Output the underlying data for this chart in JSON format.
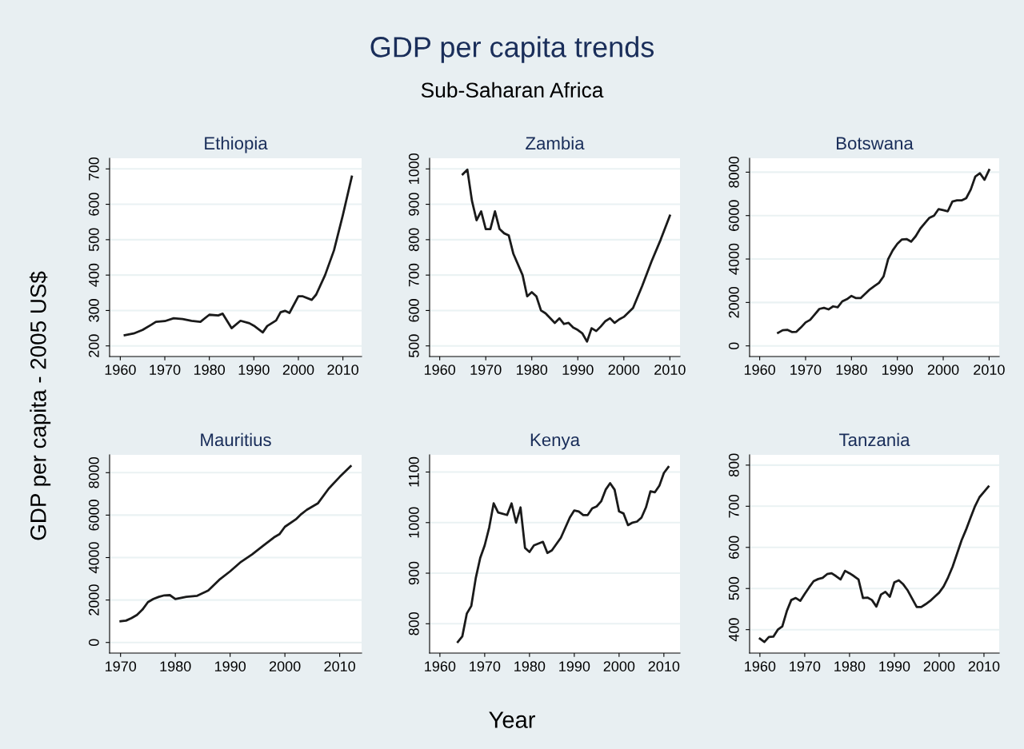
{
  "chart_data": [
    {
      "type": "line",
      "title": "Ethiopia",
      "annotations": [
        "GDP per capita trends",
        "Sub-Saharan Africa"
      ],
      "ylabel": "GDP per capita - 2005 US$",
      "grid": "y",
      "xlim": [
        1957.6,
        2014.2
      ],
      "xticks": [
        1960,
        1970,
        1980,
        1990,
        2000,
        2010
      ],
      "ylim": [
        170,
        730
      ],
      "yticks": [
        200,
        300,
        400,
        500,
        600,
        700
      ],
      "x": [
        1961,
        1963,
        1965,
        1967,
        1968,
        1970,
        1972,
        1974,
        1976,
        1978,
        1980,
        1982,
        1983,
        1985,
        1987,
        1989,
        1990,
        1992,
        1993,
        1995,
        1996,
        1997,
        1998,
        2000,
        2001,
        2003,
        2004,
        2006,
        2008,
        2010,
        2012
      ],
      "series": [
        {
          "color": "#1a1a1a",
          "values": [
            230,
            235,
            245,
            260,
            268,
            270,
            278,
            276,
            271,
            268,
            288,
            286,
            291,
            250,
            271,
            264,
            257,
            238,
            256,
            272,
            295,
            299,
            293,
            340,
            340,
            330,
            345,
            400,
            470,
            570,
            678
          ]
        }
      ]
    },
    {
      "type": "line",
      "title": "Zambia",
      "grid": "y",
      "xlim": [
        1957.8,
        2012.2
      ],
      "xticks": [
        1960,
        1970,
        1980,
        1990,
        2000,
        2010
      ],
      "ylim": [
        470,
        1030
      ],
      "yticks": [
        500,
        600,
        700,
        800,
        900,
        1000
      ],
      "x": [
        1965,
        1966,
        1967,
        1968,
        1969,
        1970,
        1971,
        1972,
        1973,
        1974,
        1975,
        1976,
        1978,
        1979,
        1980,
        1981,
        1982,
        1983,
        1985,
        1986,
        1987,
        1988,
        1989,
        1990,
        1991,
        1992,
        1993,
        1994,
        1995,
        1996,
        1997,
        1998,
        1999,
        2000,
        2002,
        2004,
        2006,
        2008,
        2010
      ],
      "series": [
        {
          "color": "#1a1a1a",
          "values": [
            985,
            998,
            910,
            855,
            880,
            830,
            830,
            880,
            830,
            818,
            812,
            760,
            700,
            640,
            652,
            640,
            600,
            592,
            565,
            578,
            562,
            565,
            552,
            545,
            535,
            512,
            550,
            542,
            555,
            570,
            578,
            565,
            575,
            582,
            607,
            670,
            738,
            800,
            868
          ]
        }
      ]
    },
    {
      "type": "line",
      "title": "Botswana",
      "grid": "y",
      "xlim": [
        1957.8,
        2012.2
      ],
      "xticks": [
        1960,
        1970,
        1980,
        1990,
        2000,
        2010
      ],
      "ylim": [
        -490,
        8640
      ],
      "yticks": [
        0,
        2000,
        4000,
        6000,
        8000
      ],
      "x": [
        1964,
        1965,
        1966,
        1967,
        1968,
        1969,
        1970,
        1971,
        1972,
        1973,
        1974,
        1975,
        1976,
        1977,
        1978,
        1979,
        1980,
        1981,
        1982,
        1983,
        1984,
        1985,
        1986,
        1987,
        1988,
        1989,
        1990,
        1991,
        1992,
        1993,
        1994,
        1995,
        1996,
        1997,
        1998,
        1999,
        2000,
        2001,
        2002,
        2003,
        2004,
        2005,
        2006,
        2007,
        2008,
        2009,
        2010
      ],
      "series": [
        {
          "color": "#1a1a1a",
          "values": [
            600,
            720,
            740,
            640,
            650,
            850,
            1080,
            1200,
            1450,
            1700,
            1750,
            1680,
            1820,
            1780,
            2050,
            2150,
            2300,
            2200,
            2200,
            2400,
            2600,
            2750,
            2900,
            3200,
            4000,
            4400,
            4700,
            4900,
            4920,
            4800,
            5050,
            5400,
            5650,
            5900,
            6000,
            6300,
            6250,
            6200,
            6650,
            6700,
            6700,
            6800,
            7200,
            7800,
            7950,
            7650,
            8100
          ]
        }
      ]
    },
    {
      "type": "line",
      "title": "Mauritius",
      "grid": "y",
      "xlim": [
        1968,
        2014
      ],
      "xticks": [
        1970,
        1980,
        1990,
        2000,
        2010
      ],
      "ylim": [
        -500,
        8840
      ],
      "yticks": [
        0,
        2000,
        4000,
        6000,
        8000
      ],
      "x": [
        1970,
        1971,
        1972,
        1973,
        1974,
        1975,
        1976,
        1977,
        1978,
        1979,
        1980,
        1982,
        1984,
        1986,
        1988,
        1990,
        1992,
        1994,
        1996,
        1998,
        1999,
        2000,
        2002,
        2003,
        2004,
        2006,
        2008,
        2010,
        2012
      ],
      "series": [
        {
          "color": "#1a1a1a",
          "values": [
            1000,
            1030,
            1150,
            1300,
            1550,
            1900,
            2050,
            2150,
            2220,
            2230,
            2050,
            2150,
            2200,
            2450,
            2950,
            3350,
            3800,
            4150,
            4550,
            4950,
            5100,
            5450,
            5800,
            6050,
            6250,
            6550,
            7250,
            7800,
            8300
          ]
        }
      ]
    },
    {
      "type": "line",
      "title": "Kenya",
      "xlabel": "Year",
      "grid": "y",
      "xlim": [
        1957.7,
        2013.6
      ],
      "xticks": [
        1960,
        1970,
        1980,
        1990,
        2000,
        2010
      ],
      "ylim": [
        742,
        1134
      ],
      "yticks": [
        800,
        900,
        1000,
        1100
      ],
      "x": [
        1964,
        1965,
        1966,
        1967,
        1968,
        1969,
        1970,
        1971,
        1972,
        1973,
        1975,
        1976,
        1977,
        1978,
        1979,
        1980,
        1981,
        1983,
        1984,
        1985,
        1987,
        1989,
        1990,
        1991,
        1992,
        1993,
        1994,
        1995,
        1996,
        1997,
        1998,
        1999,
        2000,
        2001,
        2002,
        2003,
        2004,
        2005,
        2006,
        2007,
        2008,
        2009,
        2010,
        2011
      ],
      "series": [
        {
          "color": "#1a1a1a",
          "values": [
            764,
            775,
            820,
            835,
            890,
            930,
            955,
            990,
            1038,
            1020,
            1015,
            1038,
            1000,
            1030,
            950,
            942,
            955,
            962,
            940,
            945,
            970,
            1010,
            1024,
            1022,
            1015,
            1015,
            1028,
            1032,
            1042,
            1065,
            1078,
            1065,
            1022,
            1018,
            995,
            1000,
            1002,
            1010,
            1030,
            1062,
            1060,
            1073,
            1098,
            1110
          ]
        }
      ]
    },
    {
      "type": "line",
      "title": "Tanzania",
      "grid": "y",
      "xlim": [
        1957.7,
        2013.4
      ],
      "xticks": [
        1960,
        1970,
        1980,
        1990,
        2000,
        2010
      ],
      "ylim": [
        343,
        825
      ],
      "yticks": [
        400,
        500,
        600,
        700,
        800
      ],
      "x": [
        1960,
        1961,
        1962,
        1963,
        1964,
        1965,
        1966,
        1967,
        1968,
        1969,
        1970,
        1971,
        1972,
        1973,
        1974,
        1975,
        1976,
        1977,
        1978,
        1979,
        1980,
        1981,
        1982,
        1983,
        1984,
        1985,
        1986,
        1987,
        1988,
        1989,
        1990,
        1991,
        1992,
        1993,
        1994,
        1995,
        1996,
        1997,
        1998,
        1999,
        2000,
        2001,
        2002,
        2003,
        2004,
        2005,
        2006,
        2007,
        2008,
        2009,
        2010,
        2011
      ],
      "series": [
        {
          "color": "#1a1a1a",
          "values": [
            378,
            370,
            382,
            383,
            400,
            408,
            445,
            472,
            477,
            470,
            487,
            503,
            518,
            523,
            526,
            535,
            537,
            530,
            522,
            543,
            537,
            530,
            522,
            477,
            478,
            472,
            456,
            485,
            492,
            480,
            515,
            520,
            510,
            495,
            475,
            455,
            455,
            462,
            470,
            480,
            490,
            505,
            527,
            553,
            585,
            617,
            643,
            672,
            700,
            722,
            735,
            748
          ]
        }
      ]
    }
  ]
}
